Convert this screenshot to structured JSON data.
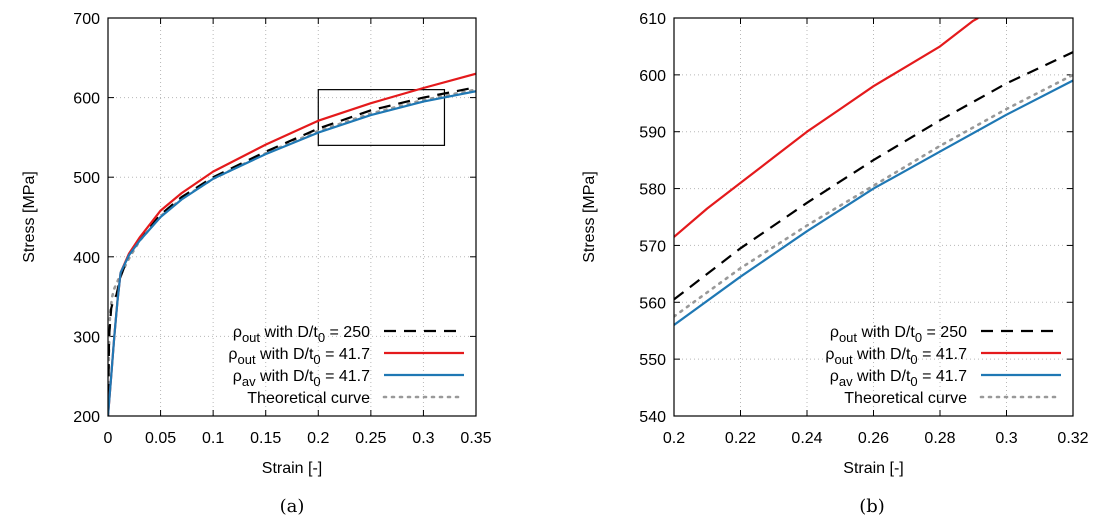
{
  "chart_data": [
    {
      "type": "line",
      "panel_label": "(a)",
      "xlabel": "Strain [-]",
      "ylabel": "Stress [MPa]",
      "xlim": [
        0,
        0.35
      ],
      "ylim": [
        200,
        700
      ],
      "xticks": [
        0,
        0.05,
        0.1,
        0.15,
        0.2,
        0.25,
        0.3,
        0.35
      ],
      "xtick_labels": [
        "0",
        "0.05",
        "0.1",
        "0.15",
        "0.2",
        "0.25",
        "0.3",
        "0.35"
      ],
      "yticks": [
        200,
        300,
        400,
        500,
        600,
        700
      ],
      "ytick_labels": [
        "200",
        "300",
        "400",
        "500",
        "600",
        "700"
      ],
      "grid": true,
      "legend_position": "bottom-right",
      "zoom_box": {
        "x": [
          0.2,
          0.32
        ],
        "y": [
          540,
          610
        ]
      },
      "series": [
        {
          "key": "D250",
          "legend": {
            "rho": "ρ",
            "rho_sub": "out",
            "with": " with D/t",
            "t_sub": "0",
            "value": " = 250"
          },
          "color": "#000000",
          "style": "dashed",
          "x": [
            0,
            0.001,
            0.003,
            0.005,
            0.008,
            0.012,
            0.02,
            0.03,
            0.05,
            0.07,
            0.1,
            0.15,
            0.2,
            0.25,
            0.3,
            0.35
          ],
          "y": [
            200,
            300,
            335,
            345,
            352,
            375,
            403,
            422,
            453,
            475,
            500,
            532,
            561,
            584,
            600,
            613
          ]
        },
        {
          "key": "D41out",
          "legend": {
            "rho": "ρ",
            "rho_sub": "out",
            "with": " with D/t",
            "t_sub": "0",
            "value": " = 41.7"
          },
          "color": "#e41a1c",
          "style": "solid",
          "x": [
            0,
            0.003,
            0.006,
            0.009,
            0.012,
            0.02,
            0.03,
            0.05,
            0.07,
            0.1,
            0.15,
            0.2,
            0.25,
            0.3,
            0.35
          ],
          "y": [
            200,
            250,
            300,
            345,
            380,
            404,
            424,
            458,
            480,
            507,
            541,
            571,
            593,
            612,
            630
          ]
        },
        {
          "key": "D41av",
          "legend": {
            "rho": "ρ",
            "rho_sub": "av",
            "with": " with D/t",
            "t_sub": "0",
            "value": " = 41.7"
          },
          "color": "#1f78b4",
          "style": "solid",
          "x": [
            0,
            0.003,
            0.006,
            0.009,
            0.012,
            0.02,
            0.03,
            0.05,
            0.07,
            0.1,
            0.15,
            0.2,
            0.25,
            0.3,
            0.35
          ],
          "y": [
            200,
            250,
            300,
            345,
            380,
            402,
            420,
            450,
            472,
            498,
            529,
            556,
            578,
            595,
            608
          ]
        },
        {
          "key": "theory",
          "legend": {
            "plain": "Theoretical curve"
          },
          "color": "#999999",
          "style": "dotted",
          "x": [
            0,
            0.001,
            0.002,
            0.004,
            0.006,
            0.01,
            0.015,
            0.02,
            0.03,
            0.05,
            0.07,
            0.1,
            0.15,
            0.2,
            0.25,
            0.3,
            0.35
          ],
          "y": [
            210,
            290,
            330,
            350,
            360,
            372,
            385,
            398,
            420,
            451,
            473,
            498,
            530,
            558,
            580,
            597,
            610
          ]
        }
      ]
    },
    {
      "type": "line",
      "panel_label": "(b)",
      "xlabel": "Strain [-]",
      "ylabel": "Stress [MPa]",
      "xlim": [
        0.2,
        0.32
      ],
      "ylim": [
        540,
        610
      ],
      "xticks": [
        0.2,
        0.22,
        0.24,
        0.26,
        0.28,
        0.3,
        0.32
      ],
      "xtick_labels": [
        "0.2",
        "0.22",
        "0.24",
        "0.26",
        "0.28",
        "0.3",
        "0.32"
      ],
      "yticks": [
        540,
        550,
        560,
        570,
        580,
        590,
        600,
        610
      ],
      "ytick_labels": [
        "540",
        "550",
        "560",
        "570",
        "580",
        "590",
        "600",
        "610"
      ],
      "grid": true,
      "legend_position": "bottom-right",
      "series": [
        {
          "key": "D250",
          "legend": {
            "rho": "ρ",
            "rho_sub": "out",
            "with": " with D/t",
            "t_sub": "0",
            "value": " = 250"
          },
          "color": "#000000",
          "style": "dashed",
          "x": [
            0.2,
            0.22,
            0.24,
            0.26,
            0.28,
            0.3,
            0.32
          ],
          "y": [
            560.5,
            569.5,
            577.5,
            585,
            592,
            598.5,
            604
          ]
        },
        {
          "key": "D41out",
          "legend": {
            "rho": "ρ",
            "rho_sub": "out",
            "with": " with D/t",
            "t_sub": "0",
            "value": " = 41.7"
          },
          "color": "#e41a1c",
          "style": "solid",
          "x": [
            0.2,
            0.21,
            0.22,
            0.23,
            0.24,
            0.25,
            0.26,
            0.27,
            0.28,
            0.29,
            0.2915
          ],
          "y": [
            571.5,
            576.5,
            581,
            585.5,
            590,
            594,
            598,
            601.5,
            605,
            609.5,
            610
          ]
        },
        {
          "key": "D41av",
          "legend": {
            "rho": "ρ",
            "rho_sub": "av",
            "with": " with D/t",
            "t_sub": "0",
            "value": " = 41.7"
          },
          "color": "#1f78b4",
          "style": "solid",
          "x": [
            0.2,
            0.22,
            0.24,
            0.26,
            0.28,
            0.3,
            0.32
          ],
          "y": [
            556,
            564.5,
            572.5,
            580,
            586.5,
            593,
            599
          ]
        },
        {
          "key": "theory",
          "legend": {
            "plain": "Theoretical curve"
          },
          "color": "#999999",
          "style": "dotted",
          "x": [
            0.2,
            0.22,
            0.24,
            0.26,
            0.28,
            0.3,
            0.32
          ],
          "y": [
            557.5,
            566,
            573.5,
            580.5,
            587.5,
            594,
            600
          ]
        }
      ]
    }
  ]
}
